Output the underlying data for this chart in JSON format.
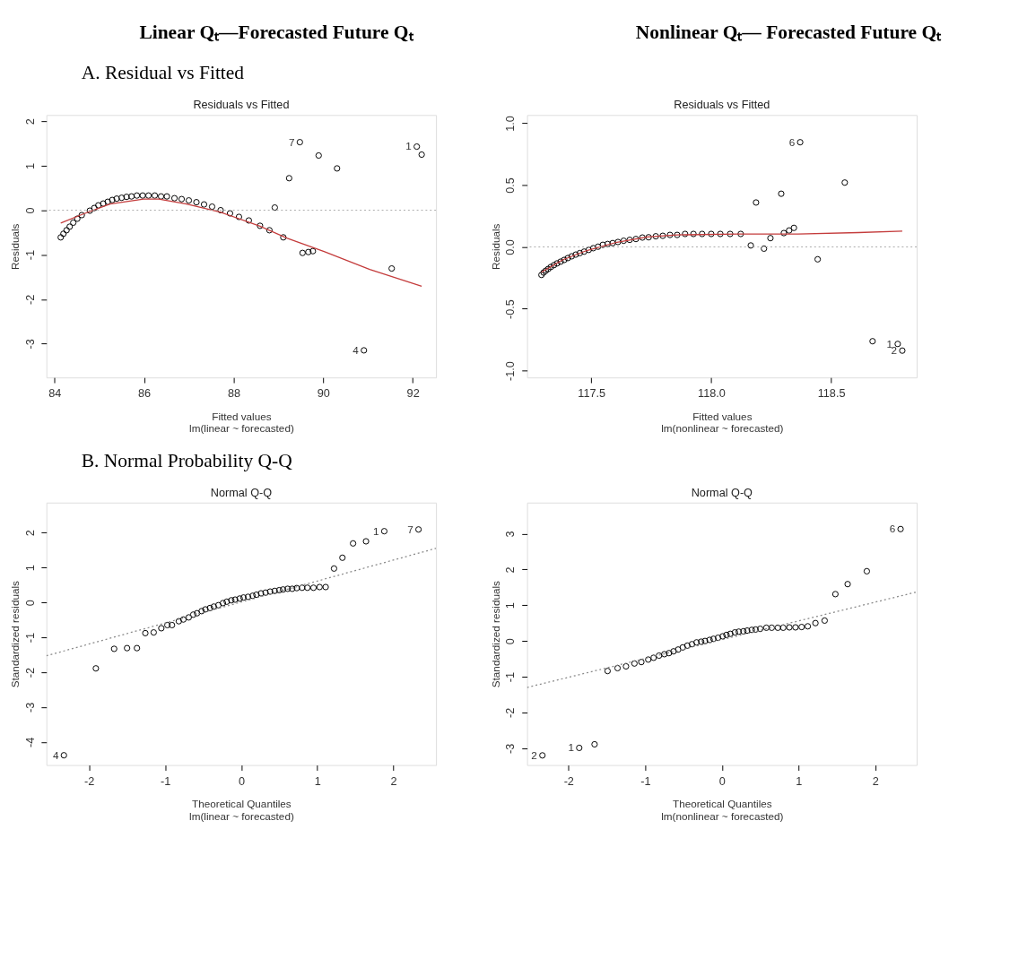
{
  "chart_data": [
    {
      "type": "other",
      "title": "Linear Qₜ—Forecasted Future Qₜ"
    },
    {
      "type": "other",
      "title": "Nonlinear Qₜ— Forecasted Future Qₜ"
    },
    {
      "type": "other",
      "title": "A.  Residual vs Fitted"
    },
    {
      "type": "scatter",
      "title": "Residuals vs Fitted",
      "xlabel": "Fitted values",
      "ylabel": "Residuals",
      "xlim": [
        83.82,
        92.52
      ],
      "ylim": [
        -3.76,
        2.14
      ],
      "xticks": [
        84,
        86,
        88,
        90,
        92
      ],
      "yticks": [
        -3,
        -2,
        -1,
        0,
        1,
        2
      ],
      "grid": false,
      "series": [
        {
          "type": "scatter",
          "marker": "circle",
          "color": "#000000",
          "x": [
            84.14,
            84.2,
            84.27,
            84.34,
            84.42,
            84.51,
            84.61,
            84.79,
            84.89,
            84.98,
            85.09,
            85.19,
            85.29,
            85.39,
            85.5,
            85.61,
            85.72,
            85.84,
            85.97,
            86.1,
            86.24,
            86.38,
            86.51,
            86.68,
            86.84,
            87.0,
            87.17,
            87.34,
            87.52,
            87.71,
            87.92,
            88.12,
            88.34,
            88.59,
            88.8,
            88.92,
            89.11,
            89.24,
            89.48,
            89.54,
            89.67,
            89.77,
            89.9,
            90.31,
            90.91,
            91.53,
            92.09,
            92.2
          ],
          "values": [
            -0.61,
            -0.53,
            -0.45,
            -0.37,
            -0.28,
            -0.19,
            -0.11,
            -0.01,
            0.05,
            0.11,
            0.15,
            0.19,
            0.23,
            0.26,
            0.28,
            0.3,
            0.31,
            0.33,
            0.33,
            0.33,
            0.33,
            0.31,
            0.31,
            0.27,
            0.25,
            0.22,
            0.18,
            0.13,
            0.08,
            0.0,
            -0.07,
            -0.15,
            -0.23,
            -0.35,
            -0.45,
            0.06,
            -0.61,
            0.72,
            1.53,
            -0.96,
            -0.94,
            -0.92,
            1.23,
            0.94,
            -3.15,
            -1.31,
            1.43,
            1.25
          ]
        },
        {
          "type": "line",
          "color": "#c43c3c",
          "x": [
            84.14,
            84.63,
            85.24,
            85.99,
            86.33,
            86.95,
            87.7,
            88.59,
            89.2,
            90.02,
            91.04,
            92.2
          ],
          "values": [
            -0.29,
            -0.09,
            0.14,
            0.25,
            0.25,
            0.14,
            -0.04,
            -0.36,
            -0.63,
            -0.93,
            -1.33,
            -1.71
          ]
        }
      ],
      "ref_lines": [
        {
          "axis": "y",
          "value": 0,
          "color": "#aaaaaa",
          "line_style": "dotted"
        }
      ],
      "annotations": [
        "lm(linear ~ forecasted)",
        {
          "text": "7",
          "x": 89.48,
          "y": 1.53
        },
        {
          "text": "1",
          "x": 92.09,
          "y": 1.43
        },
        {
          "text": "4",
          "x": 90.91,
          "y": -3.15
        }
      ]
    },
    {
      "type": "scatter",
      "title": "Residuals vs Fitted",
      "xlabel": "Fitted values",
      "ylabel": "Residuals",
      "xlim": [
        117.232,
        118.857
      ],
      "ylim": [
        -1.055,
        1.066
      ],
      "xticks": [
        117.5,
        {
          "value": 118,
          "label": "118.0"
        },
        118.5
      ],
      "yticks": [
        {
          "value": -1,
          "label": "-1.0"
        },
        -0.5,
        {
          "value": 0,
          "label": "0.0"
        },
        0.5,
        {
          "value": 1,
          "label": "1.0"
        }
      ],
      "grid": false,
      "series": [
        {
          "type": "scatter",
          "marker": "circle",
          "color": "#000000",
          "x": [
            117.292,
            117.301,
            117.31,
            117.32,
            117.331,
            117.344,
            117.357,
            117.372,
            117.387,
            117.402,
            117.418,
            117.435,
            117.452,
            117.47,
            117.489,
            117.508,
            117.528,
            117.548,
            117.568,
            117.589,
            117.611,
            117.635,
            117.66,
            117.686,
            117.713,
            117.739,
            117.769,
            117.798,
            117.828,
            117.858,
            117.891,
            117.926,
            117.962,
            118.0,
            118.038,
            118.079,
            118.123,
            118.165,
            118.187,
            118.22,
            118.247,
            118.292,
            118.303,
            118.325,
            118.345,
            118.371,
            118.444,
            118.557,
            118.673,
            118.778,
            118.797
          ],
          "values": [
            -0.226,
            -0.207,
            -0.192,
            -0.178,
            -0.162,
            -0.147,
            -0.133,
            -0.119,
            -0.105,
            -0.09,
            -0.076,
            -0.062,
            -0.05,
            -0.038,
            -0.024,
            -0.01,
            0.002,
            0.017,
            0.024,
            0.031,
            0.04,
            0.05,
            0.057,
            0.064,
            0.076,
            0.078,
            0.086,
            0.09,
            0.097,
            0.097,
            0.105,
            0.105,
            0.105,
            0.105,
            0.105,
            0.105,
            0.105,
            0.012,
            0.359,
            -0.014,
            0.071,
            0.43,
            0.112,
            0.133,
            0.154,
            0.846,
            -0.1,
            0.52,
            -0.762,
            -0.784,
            -0.838
          ]
        },
        {
          "type": "line",
          "color": "#c43c3c",
          "x": [
            117.292,
            117.38,
            117.481,
            117.607,
            117.733,
            117.858,
            118.11,
            118.362,
            118.613,
            118.797
          ],
          "values": [
            -0.204,
            -0.105,
            -0.029,
            0.038,
            0.081,
            0.097,
            0.105,
            0.105,
            0.116,
            0.128
          ]
        }
      ],
      "ref_lines": [
        {
          "axis": "y",
          "value": 0,
          "color": "#aaaaaa",
          "line_style": "dotted"
        }
      ],
      "annotations": [
        "lm(nonlinear ~ forecasted)",
        {
          "text": "6",
          "x": 118.371,
          "y": 0.846
        },
        {
          "text": "1",
          "x": 118.778,
          "y": -0.784
        },
        {
          "text": "2",
          "x": 118.797,
          "y": -0.838
        }
      ]
    },
    {
      "type": "other",
      "title": "B.  Normal Probability Q-Q"
    },
    {
      "type": "scatter",
      "title": "Normal Q-Q",
      "xlabel": "Theoretical Quantiles",
      "ylabel": "Standardized residuals",
      "xlim": [
        -2.56,
        2.56
      ],
      "ylim": [
        -4.66,
        2.86
      ],
      "xticks": [
        -2,
        -1,
        0,
        1,
        2
      ],
      "yticks": [
        -4,
        -3,
        -2,
        -1,
        0,
        1,
        2
      ],
      "grid": false,
      "series": [
        {
          "type": "scatter",
          "marker": "circle",
          "color": "#000000",
          "x": [
            -2.33,
            -1.91,
            -1.67,
            -1.5,
            -1.37,
            -1.26,
            -1.15,
            -1.05,
            -0.97,
            -0.91,
            -0.82,
            -0.76,
            -0.69,
            -0.63,
            -0.58,
            -0.52,
            -0.47,
            -0.41,
            -0.36,
            -0.3,
            -0.24,
            -0.19,
            -0.13,
            -0.08,
            -0.02,
            0.03,
            0.09,
            0.15,
            0.2,
            0.26,
            0.32,
            0.38,
            0.44,
            0.5,
            0.55,
            0.61,
            0.67,
            0.73,
            0.8,
            0.87,
            0.95,
            1.03,
            1.11,
            1.22,
            1.33,
            1.47,
            1.64,
            1.88,
            2.33
          ],
          "values": [
            -4.38,
            -1.89,
            -1.33,
            -1.31,
            -1.31,
            -0.88,
            -0.86,
            -0.74,
            -0.65,
            -0.65,
            -0.54,
            -0.49,
            -0.43,
            -0.35,
            -0.31,
            -0.25,
            -0.2,
            -0.16,
            -0.12,
            -0.08,
            -0.02,
            0.02,
            0.06,
            0.08,
            0.11,
            0.14,
            0.16,
            0.19,
            0.22,
            0.26,
            0.28,
            0.31,
            0.33,
            0.35,
            0.37,
            0.39,
            0.39,
            0.41,
            0.42,
            0.42,
            0.42,
            0.44,
            0.44,
            0.97,
            1.28,
            1.69,
            1.75,
            2.04,
            2.09
          ]
        },
        {
          "type": "line",
          "color": "#888888",
          "line_style": "dotted",
          "x": [
            -2.56,
            2.56
          ],
          "values": [
            -1.53,
            1.55
          ]
        }
      ],
      "annotations": [
        "lm(linear ~ forecasted)",
        {
          "text": "4",
          "x": -2.33,
          "y": -4.38
        },
        {
          "text": "1",
          "x": 1.88,
          "y": 2.04
        },
        {
          "text": "7",
          "x": 2.33,
          "y": 2.09
        }
      ]
    },
    {
      "type": "scatter",
      "title": "Normal Q-Q",
      "xlabel": "Theoretical Quantiles",
      "ylabel": "Standardized residuals",
      "xlim": [
        -2.54,
        2.54
      ],
      "ylim": [
        -3.47,
        3.87
      ],
      "xticks": [
        -2,
        -1,
        0,
        1,
        2
      ],
      "yticks": [
        -3,
        -2,
        -1,
        0,
        1,
        2,
        3
      ],
      "grid": false,
      "series": [
        {
          "type": "scatter",
          "marker": "circle",
          "color": "#000000",
          "x": [
            -2.34,
            -1.86,
            -1.66,
            -1.49,
            -1.36,
            -1.25,
            -1.14,
            -1.05,
            -0.96,
            -0.89,
            -0.82,
            -0.75,
            -0.69,
            -0.63,
            -0.57,
            -0.51,
            -0.45,
            -0.39,
            -0.33,
            -0.27,
            -0.22,
            -0.16,
            -0.11,
            -0.05,
            0.01,
            0.06,
            0.11,
            0.17,
            0.22,
            0.28,
            0.33,
            0.39,
            0.44,
            0.5,
            0.58,
            0.65,
            0.73,
            0.8,
            0.88,
            0.96,
            1.04,
            1.12,
            1.22,
            1.34,
            1.48,
            1.64,
            1.89,
            2.33
          ],
          "values": [
            -3.2,
            -2.99,
            -2.89,
            -0.84,
            -0.76,
            -0.71,
            -0.63,
            -0.59,
            -0.52,
            -0.47,
            -0.41,
            -0.37,
            -0.34,
            -0.29,
            -0.24,
            -0.18,
            -0.13,
            -0.09,
            -0.04,
            -0.02,
            0.0,
            0.03,
            0.06,
            0.09,
            0.13,
            0.17,
            0.2,
            0.24,
            0.26,
            0.27,
            0.29,
            0.31,
            0.32,
            0.34,
            0.37,
            0.37,
            0.37,
            0.37,
            0.38,
            0.38,
            0.39,
            0.41,
            0.5,
            0.57,
            1.31,
            1.59,
            1.95,
            3.13
          ]
        },
        {
          "type": "line",
          "color": "#888888",
          "line_style": "dotted",
          "x": [
            -2.54,
            2.54
          ],
          "values": [
            -1.3,
            1.37
          ]
        }
      ],
      "annotations": [
        "lm(nonlinear ~ forecasted)",
        {
          "text": "2",
          "x": -2.34,
          "y": -3.2
        },
        {
          "text": "1",
          "x": -1.86,
          "y": -2.99
        },
        {
          "text": "6",
          "x": 2.33,
          "y": 3.13
        }
      ]
    }
  ]
}
